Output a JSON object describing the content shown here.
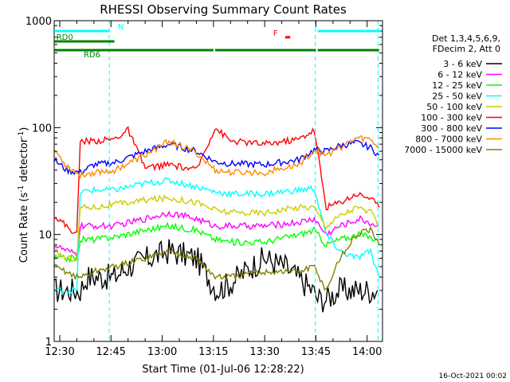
{
  "chart_data": {
    "type": "line",
    "title": "RHESSI Observing Summary Count Rates",
    "xlabel": "Start Time (01-Jul-06 12:28:22)",
    "ylabel_main": "Count Rate (s",
    "ylabel_sup1": "-1",
    "ylabel_mid": " detector",
    "ylabel_sup2": "-1",
    "ylabel_end": ")",
    "x_ticks": [
      {
        "t": 30,
        "label": "12:30"
      },
      {
        "t": 45,
        "label": "12:45"
      },
      {
        "t": 60,
        "label": "13:00"
      },
      {
        "t": 75,
        "label": "13:15"
      },
      {
        "t": 90,
        "label": "13:30"
      },
      {
        "t": 105,
        "label": "13:45"
      },
      {
        "t": 120,
        "label": "14:00"
      }
    ],
    "xlim_minutes_after_12_00": [
      28.37,
      124.5
    ],
    "y_scale": "log",
    "ylim": [
      1,
      1000
    ],
    "y_ticks": [
      {
        "v": 1,
        "label": "1"
      },
      {
        "v": 10,
        "label": "10"
      },
      {
        "v": 100,
        "label": "100"
      },
      {
        "v": 1000,
        "label": "1000"
      }
    ],
    "legend_header": [
      "Det 1,3,4,5,6,9,",
      "FDecim 2, Att 0"
    ],
    "legend_position": "right",
    "series": [
      {
        "name": "3 - 6 keV",
        "color": "#000000",
        "x": [
          28.4,
          36,
          38,
          42,
          46,
          50,
          56,
          62,
          70,
          76,
          80,
          86,
          90,
          96,
          104,
          105.5,
          108,
          112,
          118,
          123
        ],
        "values": [
          3,
          3,
          4,
          4,
          4,
          5,
          6,
          7,
          6,
          3,
          3.5,
          5,
          6,
          5,
          3,
          2.5,
          2.5,
          3,
          3,
          3
        ]
      },
      {
        "name": "6 - 12 keV",
        "color": "#ff00ff",
        "x": [
          28.4,
          32,
          35,
          36,
          40,
          46,
          55,
          62,
          70,
          75.5,
          80,
          90,
          100,
          104.5,
          108,
          112,
          118,
          123
        ],
        "values": [
          8,
          7,
          6.5,
          12,
          12,
          12,
          14,
          16,
          14,
          12,
          12,
          12,
          13,
          14,
          10,
          12,
          14,
          12
        ]
      },
      {
        "name": "12 - 25 keV",
        "color": "#00ff00",
        "x": [
          28.4,
          32,
          35,
          36,
          40,
          46,
          55,
          62,
          70,
          75.5,
          80,
          90,
          100,
          104.5,
          108,
          112,
          118,
          123
        ],
        "values": [
          6,
          6,
          6,
          9,
          9,
          9.5,
          11,
          12,
          11,
          9,
          8.5,
          8.5,
          10,
          11,
          8,
          9,
          10,
          9
        ]
      },
      {
        "name": "25 - 50 keV",
        "color": "#00ffff",
        "x": [
          28.4,
          32,
          35,
          36,
          40,
          46,
          55,
          62,
          70,
          75.5,
          80,
          90,
          100,
          104.5,
          108,
          112,
          117,
          121,
          123.5
        ],
        "values": [
          3,
          3,
          3,
          25,
          26,
          26,
          30,
          32,
          28,
          25,
          24,
          24,
          26,
          27,
          10,
          7,
          6,
          7,
          4
        ]
      },
      {
        "name": "50 - 100 keV",
        "color": "#cccc00",
        "x": [
          28.4,
          32,
          35,
          36,
          40,
          46,
          55,
          62,
          70,
          75.5,
          80,
          90,
          100,
          104.5,
          108,
          112,
          117,
          121,
          123.5
        ],
        "values": [
          7,
          6,
          6,
          18,
          18,
          19,
          21,
          22,
          20,
          17,
          16,
          16,
          18,
          18,
          12,
          15,
          18,
          16,
          12
        ]
      },
      {
        "name": "100 - 300 keV",
        "color": "#ff0000",
        "x": [
          28.4,
          32,
          35,
          36,
          40,
          46,
          50,
          55,
          62,
          70,
          75.5,
          80,
          90,
          100,
          104.5,
          108,
          112,
          117,
          121,
          123.5
        ],
        "values": [
          15,
          12,
          10,
          75,
          75,
          78,
          95,
          42,
          45,
          40,
          100,
          75,
          70,
          78,
          95,
          18,
          20,
          24,
          22,
          18
        ]
      },
      {
        "name": "300 - 800 keV",
        "color": "#0000ff",
        "x": [
          28.4,
          32,
          36,
          40,
          46,
          55,
          62,
          70,
          75.5,
          80,
          90,
          100,
          104.5,
          108,
          112,
          117,
          121,
          123.5
        ],
        "values": [
          50,
          40,
          38,
          45,
          47,
          60,
          70,
          60,
          48,
          46,
          45,
          50,
          62,
          60,
          68,
          72,
          65,
          55
        ]
      },
      {
        "name": "800 - 7000 keV",
        "color": "#ff8800",
        "x": [
          28.4,
          32,
          36,
          40,
          46,
          55,
          62,
          70,
          75.5,
          80,
          90,
          100,
          104.5,
          108,
          112,
          117,
          121,
          123.5
        ],
        "values": [
          62,
          44,
          36,
          38,
          40,
          55,
          75,
          58,
          40,
          38,
          38,
          45,
          62,
          55,
          65,
          80,
          78,
          65
        ]
      },
      {
        "name": "7000 - 15000 keV",
        "color": "#808000",
        "x": [
          28.4,
          32,
          35,
          36,
          40,
          46,
          55,
          62,
          70,
          75.5,
          80,
          90,
          100,
          104.5,
          108,
          112,
          117,
          121,
          123.5
        ],
        "values": [
          5,
          4.5,
          4,
          4,
          4.5,
          5,
          6,
          7,
          6,
          4,
          4,
          4.5,
          4.5,
          5,
          3,
          6,
          10,
          11,
          8
        ]
      }
    ],
    "flags": [
      {
        "label": "N",
        "color": "#00ffff",
        "segments": [
          [
            28.4,
            44.5
          ],
          [
            105.5,
            124
          ]
        ],
        "level": 800
      },
      {
        "label": "RD0",
        "color": "#008000",
        "segments": [
          [
            28.4,
            46
          ]
        ],
        "level": 640
      },
      {
        "label": "RD6",
        "color": "#008000",
        "segments": [
          [
            28.4,
            58
          ],
          [
            58,
            75
          ],
          [
            75.5,
            105
          ],
          [
            105.5,
            123.5
          ]
        ],
        "level": 530
      },
      {
        "label": "F",
        "color": "#ff0000",
        "segments": [
          [
            96,
            97.5
          ]
        ],
        "level": 700
      }
    ],
    "vlines": [
      {
        "t": 44.5,
        "color": "#00ffff"
      },
      {
        "t": 104.8,
        "color": "#00ffff"
      },
      {
        "t": 123.2,
        "color": "#00ffff"
      }
    ],
    "footer_date": "16-Oct-2021 00:02"
  }
}
